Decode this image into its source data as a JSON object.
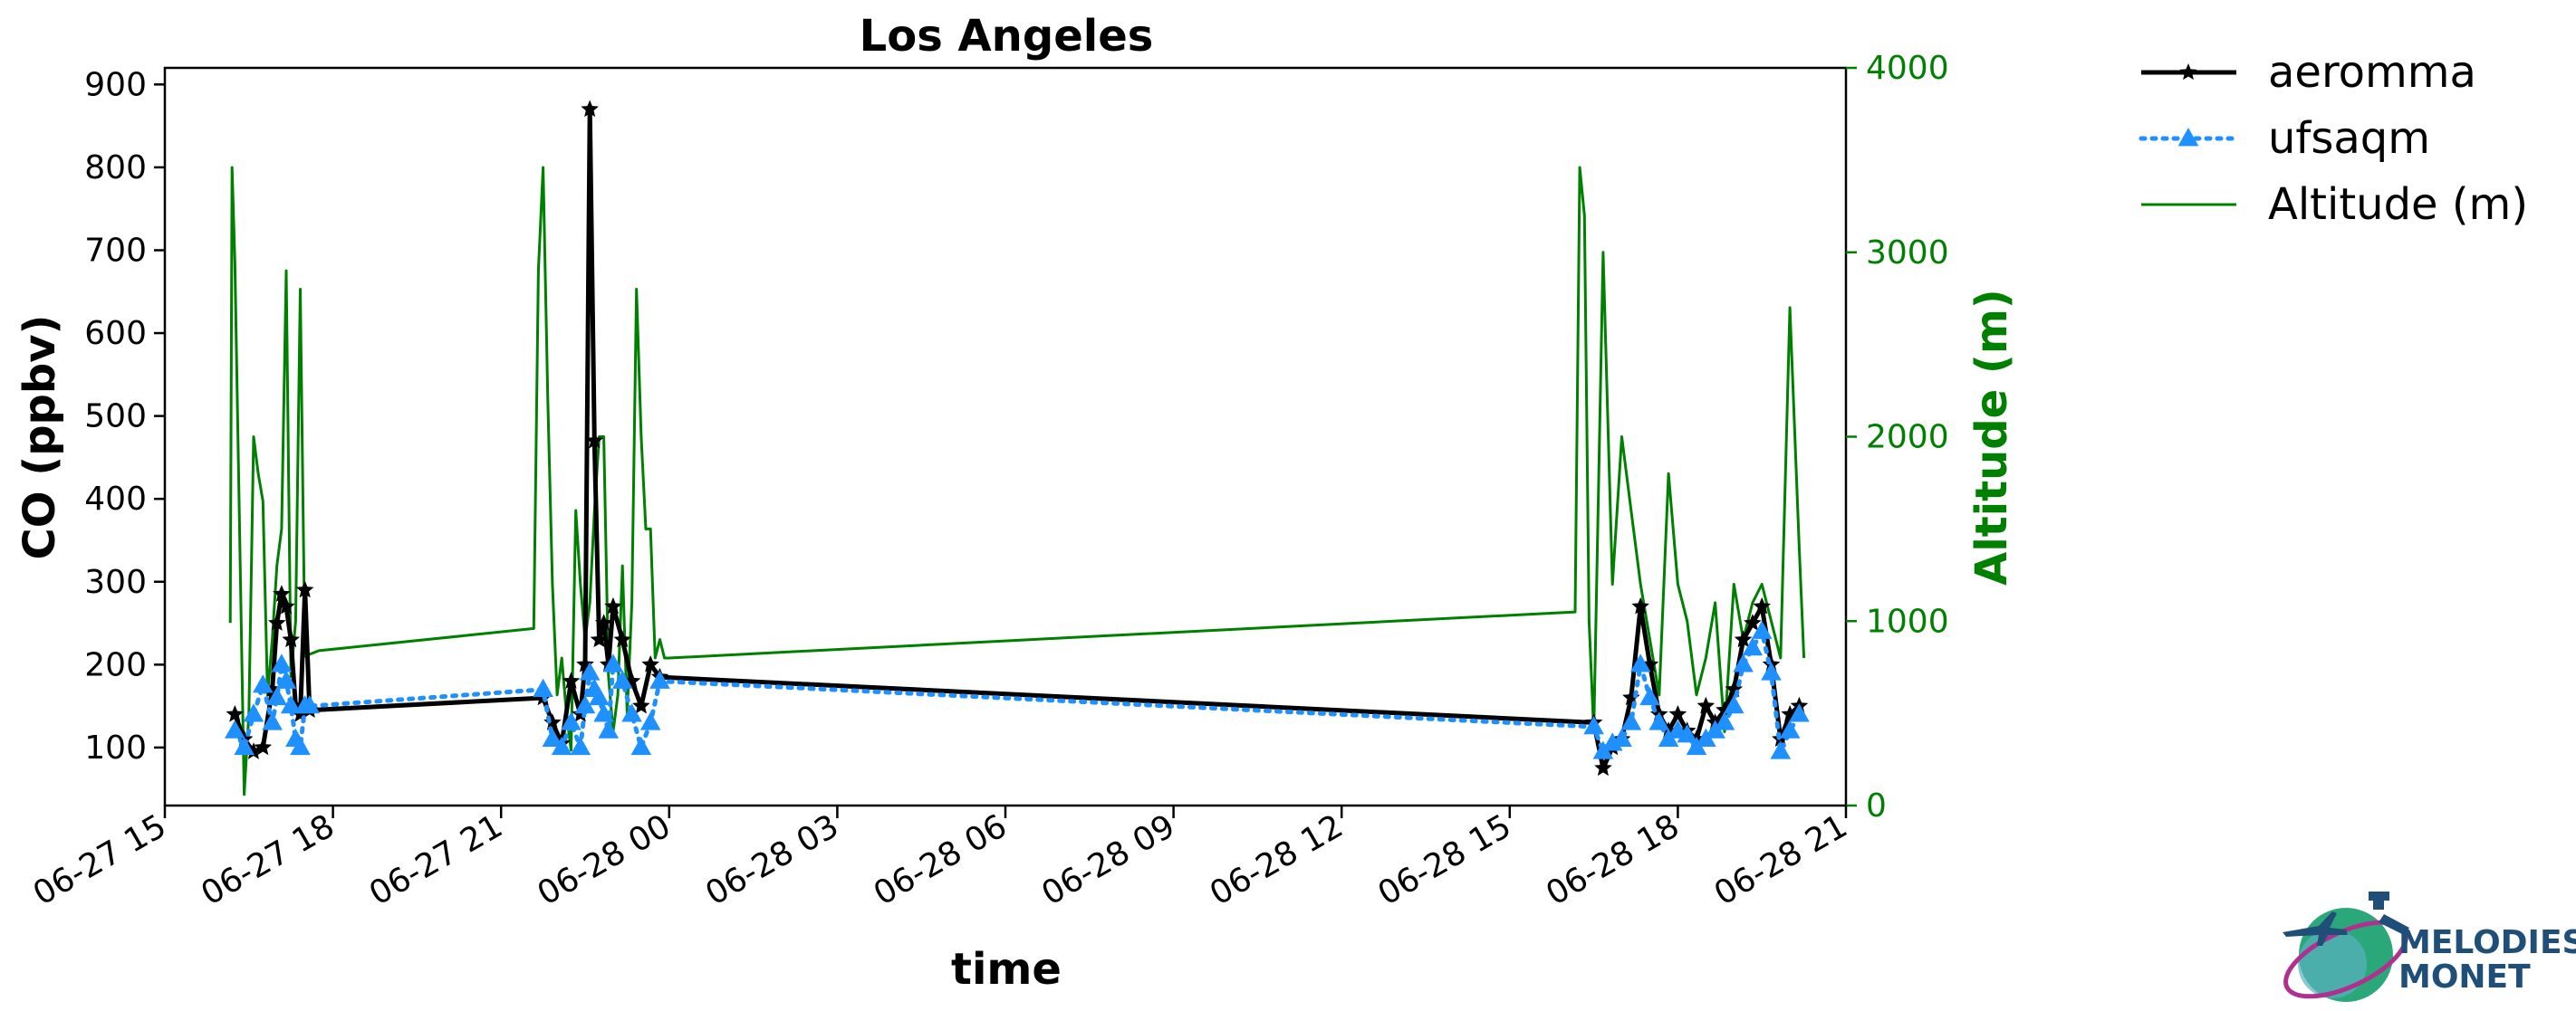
{
  "chart_data": {
    "type": "line",
    "title": "Los Angeles",
    "xlabel": "time",
    "ylabel": "CO (ppbv)",
    "y2label": "Altitude (m)",
    "xlim": [
      "06-27 15:00",
      "06-28 21:00"
    ],
    "ylim": [
      30,
      920
    ],
    "y2lim": [
      0,
      4000
    ],
    "x_ticks": [
      "06-27 15",
      "06-27 18",
      "06-27 21",
      "06-28 00",
      "06-28 03",
      "06-28 06",
      "06-28 09",
      "06-28 12",
      "06-28 15",
      "06-28 18",
      "06-28 21"
    ],
    "y_ticks": [
      100,
      200,
      300,
      400,
      500,
      600,
      700,
      800,
      900
    ],
    "y2_ticks": [
      0,
      1000,
      2000,
      3000,
      4000
    ],
    "legend_position": "outside-top-right",
    "series": [
      {
        "name": "aeromma",
        "color": "#000000",
        "marker": "star",
        "axis": "left",
        "x": [
          "06-27 16:15",
          "06-27 16:25",
          "06-27 16:35",
          "06-27 16:45",
          "06-27 16:55",
          "06-27 17:00",
          "06-27 17:05",
          "06-27 17:10",
          "06-27 17:15",
          "06-27 17:20",
          "06-27 17:25",
          "06-27 17:30",
          "06-27 17:35",
          "06-27 21:45",
          "06-27 21:55",
          "06-27 22:05",
          "06-27 22:15",
          "06-27 22:25",
          "06-27 22:30",
          "06-27 22:35",
          "06-27 22:40",
          "06-27 22:45",
          "06-27 22:50",
          "06-27 22:55",
          "06-27 23:00",
          "06-27 23:10",
          "06-27 23:20",
          "06-27 23:30",
          "06-27 23:40",
          "06-27 23:50",
          "06-28 16:30",
          "06-28 16:40",
          "06-28 16:50",
          "06-28 17:00",
          "06-28 17:10",
          "06-28 17:20",
          "06-28 17:30",
          "06-28 17:40",
          "06-28 17:50",
          "06-28 18:00",
          "06-28 18:10",
          "06-28 18:20",
          "06-28 18:30",
          "06-28 18:40",
          "06-28 18:50",
          "06-28 19:00",
          "06-28 19:10",
          "06-28 19:20",
          "06-28 19:30",
          "06-28 19:40",
          "06-28 19:50",
          "06-28 20:00",
          "06-28 20:10"
        ],
        "y": [
          140,
          110,
          95,
          100,
          170,
          250,
          285,
          270,
          230,
          150,
          140,
          290,
          145,
          160,
          130,
          105,
          180,
          140,
          200,
          870,
          470,
          230,
          250,
          200,
          270,
          230,
          180,
          150,
          200,
          185,
          130,
          75,
          100,
          110,
          160,
          270,
          200,
          140,
          120,
          140,
          120,
          110,
          150,
          130,
          145,
          170,
          230,
          250,
          270,
          200,
          110,
          140,
          150
        ]
      },
      {
        "name": "ufsaqm",
        "color": "#1e90ff",
        "marker": "triangle",
        "axis": "left",
        "x": [
          "06-27 16:15",
          "06-27 16:25",
          "06-27 16:35",
          "06-27 16:45",
          "06-27 16:55",
          "06-27 17:00",
          "06-27 17:05",
          "06-27 17:10",
          "06-27 17:15",
          "06-27 17:20",
          "06-27 17:25",
          "06-27 17:30",
          "06-27 17:35",
          "06-27 21:45",
          "06-27 21:55",
          "06-27 22:05",
          "06-27 22:15",
          "06-27 22:25",
          "06-27 22:30",
          "06-27 22:35",
          "06-27 22:40",
          "06-27 22:45",
          "06-27 22:50",
          "06-27 22:55",
          "06-27 23:00",
          "06-27 23:10",
          "06-27 23:20",
          "06-27 23:30",
          "06-27 23:40",
          "06-27 23:50",
          "06-28 16:30",
          "06-28 16:40",
          "06-28 16:50",
          "06-28 17:00",
          "06-28 17:10",
          "06-28 17:20",
          "06-28 17:30",
          "06-28 17:40",
          "06-28 17:50",
          "06-28 18:00",
          "06-28 18:10",
          "06-28 18:20",
          "06-28 18:30",
          "06-28 18:40",
          "06-28 18:50",
          "06-28 19:00",
          "06-28 19:10",
          "06-28 19:20",
          "06-28 19:30",
          "06-28 19:40",
          "06-28 19:50",
          "06-28 20:00",
          "06-28 20:10"
        ],
        "y": [
          120,
          100,
          140,
          175,
          130,
          160,
          200,
          180,
          150,
          110,
          100,
          150,
          150,
          170,
          110,
          100,
          130,
          100,
          150,
          190,
          170,
          160,
          140,
          120,
          200,
          180,
          140,
          100,
          130,
          180,
          125,
          95,
          105,
          110,
          130,
          200,
          160,
          130,
          110,
          120,
          115,
          100,
          110,
          120,
          130,
          150,
          200,
          220,
          240,
          190,
          95,
          120,
          140
        ]
      },
      {
        "name": "Altitude (m)",
        "color": "#008000",
        "marker": "none",
        "axis": "right",
        "x": [
          "06-27 16:10",
          "06-27 16:12",
          "06-27 16:15",
          "06-27 16:20",
          "06-27 16:25",
          "06-27 16:30",
          "06-27 16:35",
          "06-27 16:40",
          "06-27 16:45",
          "06-27 16:50",
          "06-27 16:55",
          "06-27 17:00",
          "06-27 17:05",
          "06-27 17:10",
          "06-27 17:15",
          "06-27 17:20",
          "06-27 17:25",
          "06-27 17:30",
          "06-27 17:35",
          "06-27 17:40",
          "06-27 17:45",
          "06-27 21:35",
          "06-27 21:40",
          "06-27 21:45",
          "06-27 21:50",
          "06-27 21:55",
          "06-27 22:00",
          "06-27 22:05",
          "06-27 22:10",
          "06-27 22:15",
          "06-27 22:20",
          "06-27 22:25",
          "06-27 22:30",
          "06-27 22:35",
          "06-27 22:40",
          "06-27 22:45",
          "06-27 22:50",
          "06-27 22:55",
          "06-27 23:00",
          "06-27 23:05",
          "06-27 23:10",
          "06-27 23:15",
          "06-27 23:20",
          "06-27 23:25",
          "06-27 23:30",
          "06-27 23:35",
          "06-27 23:40",
          "06-27 23:45",
          "06-27 23:50",
          "06-27 23:55",
          "06-28 00:00",
          "06-28 16:10",
          "06-28 16:15",
          "06-28 16:20",
          "06-28 16:25",
          "06-28 16:30",
          "06-28 16:40",
          "06-28 16:50",
          "06-28 17:00",
          "06-28 17:10",
          "06-28 17:20",
          "06-28 17:30",
          "06-28 17:40",
          "06-28 17:50",
          "06-28 18:00",
          "06-28 18:10",
          "06-28 18:20",
          "06-28 18:30",
          "06-28 18:40",
          "06-28 18:50",
          "06-28 19:00",
          "06-28 19:10",
          "06-28 19:20",
          "06-28 19:30",
          "06-28 19:40",
          "06-28 19:50",
          "06-28 20:00",
          "06-28 20:10",
          "06-28 20:15"
        ],
        "y": [
          990,
          3460,
          2950,
          1500,
          60,
          500,
          2000,
          1800,
          1650,
          600,
          900,
          1300,
          1500,
          2900,
          700,
          1000,
          2800,
          810,
          820,
          830,
          840,
          960,
          2900,
          3460,
          2200,
          1200,
          600,
          800,
          500,
          300,
          1600,
          1200,
          900,
          1100,
          1600,
          2000,
          2000,
          700,
          400,
          600,
          1300,
          500,
          1100,
          2800,
          2000,
          1500,
          1500,
          800,
          900,
          800,
          800,
          1050,
          3460,
          3200,
          1000,
          400,
          3000,
          1200,
          2000,
          1600,
          1200,
          900,
          600,
          1800,
          1200,
          1000,
          600,
          800,
          1100,
          400,
          1200,
          900,
          1100,
          1200,
          1000,
          800,
          2700,
          1400,
          800
        ]
      }
    ]
  }
}
